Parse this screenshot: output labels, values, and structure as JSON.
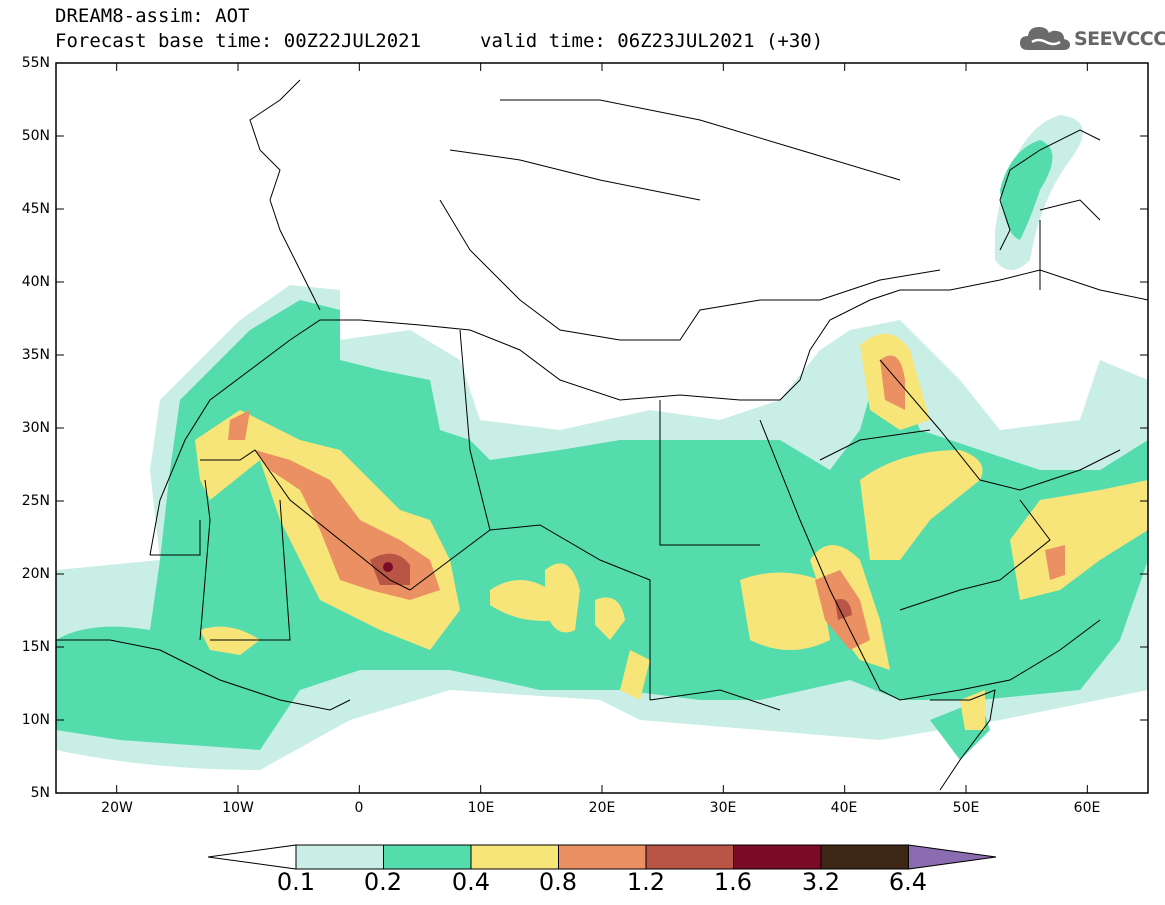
{
  "header": {
    "title": "DREAM8-assim: AOT",
    "base_time": "Forecast base time: 00Z22JUL2021",
    "valid_time": "valid time: 06Z23JUL2021 (+30)"
  },
  "logo": {
    "text": "SEEVCCC",
    "icon": "cloud-logo-icon"
  },
  "map": {
    "lat_labels": [
      "55N",
      "50N",
      "45N",
      "40N",
      "35N",
      "30N",
      "25N",
      "20N",
      "15N",
      "10N",
      "5N"
    ],
    "lon_labels": [
      "20W",
      "10W",
      "0",
      "10E",
      "20E",
      "30E",
      "40E",
      "50E",
      "60E"
    ],
    "lat_range": [
      5,
      55
    ],
    "lon_range": [
      -25,
      65
    ]
  },
  "colorbar": {
    "labels": [
      "0.1",
      "0.2",
      "0.4",
      "0.8",
      "1.2",
      "1.6",
      "3.2",
      "6.4"
    ],
    "colors": [
      "#ffffff",
      "#c8eee6",
      "#54dcac",
      "#f7e57a",
      "#ea9063",
      "#b85544",
      "#7a0a26",
      "#3d2616",
      "#8c6cb0"
    ]
  }
}
